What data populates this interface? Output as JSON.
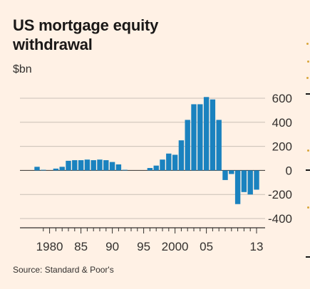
{
  "title": "US mortgage equity\nwithdrawal",
  "subtitle": "$bn",
  "source": "Source: Standard & Poor's",
  "colors": {
    "bar": "#1a82bf",
    "grid": "#c9bfb6",
    "axis": "#33302e",
    "background": "#fff1e5"
  },
  "chart_data": {
    "type": "bar",
    "title": "US mortgage equity withdrawal",
    "ylabel": "$bn",
    "xlabel": "",
    "ylim": [
      -400,
      600
    ],
    "y_ticks": [
      600,
      400,
      200,
      0,
      -200,
      -400
    ],
    "x_tick_labels": [
      {
        "year": 1980,
        "label": "1980"
      },
      {
        "year": 1985,
        "label": "85"
      },
      {
        "year": 1990,
        "label": "90"
      },
      {
        "year": 1995,
        "label": "95"
      },
      {
        "year": 2000,
        "label": "2000"
      },
      {
        "year": 2005,
        "label": "05"
      },
      {
        "year": 2013,
        "label": "13"
      }
    ],
    "grid": true,
    "x": [
      1978,
      1979,
      1980,
      1981,
      1982,
      1983,
      1984,
      1985,
      1986,
      1987,
      1988,
      1989,
      1990,
      1991,
      1992,
      1993,
      1994,
      1995,
      1996,
      1997,
      1998,
      1999,
      2000,
      2001,
      2002,
      2003,
      2004,
      2005,
      2006,
      2007,
      2008,
      2009,
      2010,
      2011,
      2012,
      2013
    ],
    "values": [
      30,
      5,
      0,
      15,
      30,
      80,
      85,
      85,
      90,
      85,
      90,
      85,
      70,
      50,
      5,
      0,
      0,
      0,
      20,
      40,
      90,
      140,
      130,
      250,
      420,
      550,
      550,
      610,
      590,
      420,
      -80,
      -30,
      -280,
      -180,
      -200,
      -160
    ]
  }
}
